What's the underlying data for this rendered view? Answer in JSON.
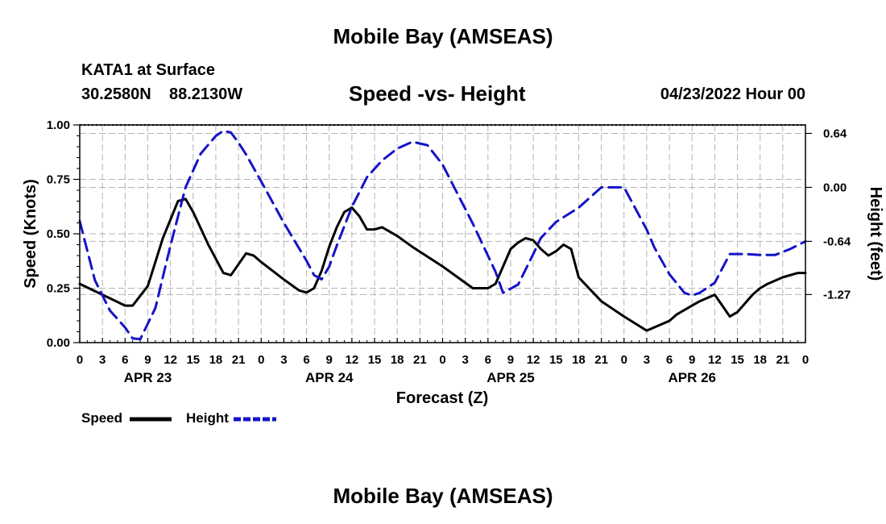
{
  "header": {
    "main_title": "Mobile Bay (AMSEAS)",
    "station": "KATA1 at Surface",
    "lat": "30.2580N",
    "lon": "88.2130W",
    "datetime": "04/23/2022 Hour 00"
  },
  "footer": {
    "repeat_title": "Mobile Bay (AMSEAS)"
  },
  "legend": {
    "speed_label": "Speed",
    "height_label": "Height"
  },
  "colors": {
    "speed": "#000000",
    "height": "#1414c8",
    "grid": "#b4b4b4"
  },
  "chart_data": {
    "type": "line",
    "title": "Speed -vs- Height",
    "xlabel": "Forecast (Z)",
    "ylabel": "Speed (Knots)",
    "y2label": "Height (feet)",
    "x_range_hours": [
      0,
      96
    ],
    "x_tick_step_hours": 3,
    "x_tick_labels": [
      "0",
      "3",
      "6",
      "9",
      "12",
      "15",
      "18",
      "21",
      "0",
      "3",
      "6",
      "9",
      "12",
      "15",
      "18",
      "21",
      "0",
      "3",
      "6",
      "9",
      "12",
      "15",
      "18",
      "21",
      "0",
      "3",
      "6",
      "9",
      "12",
      "15",
      "18",
      "21",
      "0"
    ],
    "date_labels": [
      {
        "hour": 9,
        "label": "APR 23"
      },
      {
        "hour": 33,
        "label": "APR 24"
      },
      {
        "hour": 57,
        "label": "APR 25"
      },
      {
        "hour": 81,
        "label": "APR 26"
      }
    ],
    "ylim": [
      0,
      1
    ],
    "y_ticks": [
      0,
      0.25,
      0.5,
      0.75,
      1.0
    ],
    "y_tick_labels": [
      "0.00",
      "0.25",
      "0.50",
      "0.75",
      "1.00"
    ],
    "y2lim": [
      -1.84,
      0.74
    ],
    "y2_ticks": [
      0.64,
      0.0,
      -0.64,
      -1.27
    ],
    "y2_tick_labels": [
      "0.64",
      "0.00",
      "-0.64",
      "-1.27"
    ],
    "series": [
      {
        "name": "Speed",
        "axis": "left",
        "style": "solid",
        "x": [
          0,
          3,
          6,
          7,
          9,
          11,
          13,
          14,
          15,
          17,
          19,
          20,
          21,
          22,
          23,
          24,
          27,
          29,
          30,
          31,
          32,
          33,
          34,
          35,
          36,
          37,
          38,
          39,
          40,
          42,
          44,
          48,
          52,
          54,
          55,
          56,
          57,
          58,
          59,
          60,
          61,
          62,
          63,
          64,
          65,
          66,
          69,
          72,
          75,
          78,
          79,
          81,
          82,
          84,
          86,
          87,
          88,
          89,
          90,
          91,
          93,
          95,
          96
        ],
        "y": [
          0.27,
          0.22,
          0.17,
          0.17,
          0.26,
          0.48,
          0.65,
          0.66,
          0.6,
          0.45,
          0.32,
          0.31,
          0.36,
          0.41,
          0.4,
          0.37,
          0.29,
          0.24,
          0.23,
          0.25,
          0.33,
          0.44,
          0.53,
          0.6,
          0.62,
          0.58,
          0.52,
          0.52,
          0.53,
          0.49,
          0.44,
          0.35,
          0.25,
          0.25,
          0.27,
          0.35,
          0.43,
          0.46,
          0.48,
          0.47,
          0.43,
          0.4,
          0.42,
          0.45,
          0.43,
          0.3,
          0.19,
          0.12,
          0.055,
          0.1,
          0.13,
          0.17,
          0.19,
          0.22,
          0.12,
          0.14,
          0.18,
          0.22,
          0.25,
          0.27,
          0.3,
          0.32,
          0.32
        ]
      },
      {
        "name": "Height",
        "axis": "right",
        "style": "dashed",
        "x": [
          0,
          2,
          4,
          6,
          7,
          8,
          10,
          12,
          14,
          16,
          18,
          19,
          20,
          21,
          22,
          24,
          27,
          30,
          31,
          32,
          33,
          34,
          36,
          38,
          40,
          42,
          44,
          46,
          48,
          52,
          55,
          56,
          58,
          60,
          61,
          63,
          66,
          68,
          69,
          72,
          75,
          76,
          78,
          80,
          81,
          82,
          84,
          86,
          88,
          90,
          92,
          94,
          96
        ],
        "y": [
          -0.4,
          -1.1,
          -1.46,
          -1.66,
          -1.79,
          -1.8,
          -1.43,
          -0.69,
          0.0,
          0.4,
          0.61,
          0.67,
          0.65,
          0.53,
          0.39,
          0.07,
          -0.42,
          -0.87,
          -1.04,
          -1.09,
          -0.94,
          -0.69,
          -0.23,
          0.12,
          0.32,
          0.46,
          0.54,
          0.5,
          0.27,
          -0.43,
          -1.0,
          -1.25,
          -1.15,
          -0.79,
          -0.6,
          -0.41,
          -0.24,
          -0.08,
          0.0,
          0.0,
          -0.5,
          -0.71,
          -1.03,
          -1.25,
          -1.28,
          -1.25,
          -1.13,
          -0.79,
          -0.79,
          -0.8,
          -0.8,
          -0.73,
          -0.64
        ]
      }
    ]
  }
}
